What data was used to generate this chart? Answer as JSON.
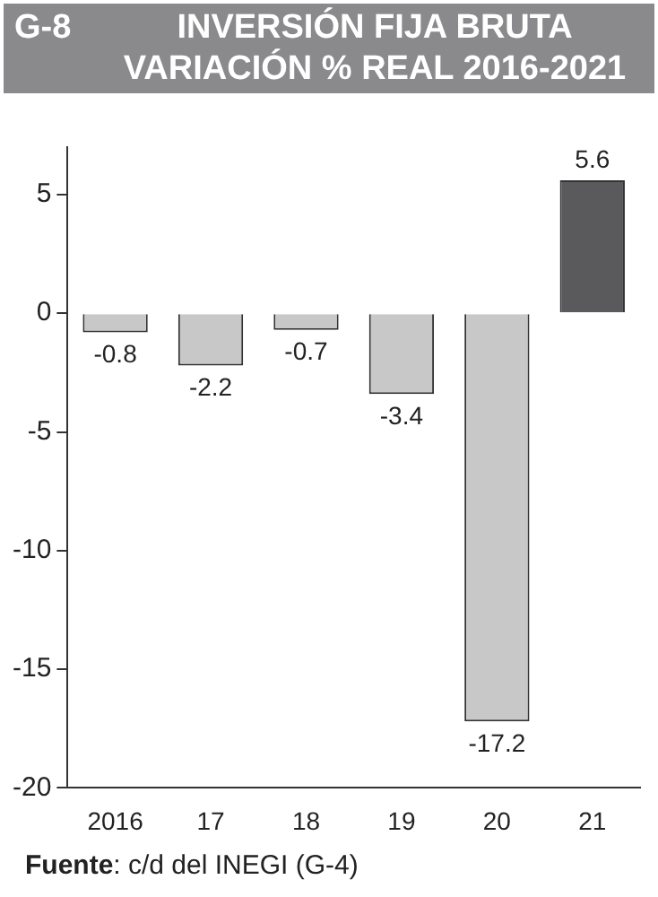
{
  "chart_data": {
    "type": "bar",
    "title": "INVERSIÓN FIJA BRUTA VARIACIÓN % REAL 2016-2021",
    "annotations": [
      "G-8",
      "Fuente: c/d del INEGI (G-4)"
    ],
    "categories": [
      "2016",
      "17",
      "18",
      "19",
      "20",
      "21"
    ],
    "values": [
      -0.8,
      -2.2,
      -0.7,
      -3.4,
      -17.2,
      5.6
    ],
    "colors": [
      "#c8c8c8",
      "#c8c8c8",
      "#c8c8c8",
      "#c8c8c8",
      "#c8c8c8",
      "#5a5a5c"
    ],
    "ylim": [
      -20,
      7
    ],
    "yticks": [
      -20,
      -15,
      -10,
      -5,
      0,
      5
    ],
    "grid": false,
    "legend": false,
    "data_labels": true
  }
}
